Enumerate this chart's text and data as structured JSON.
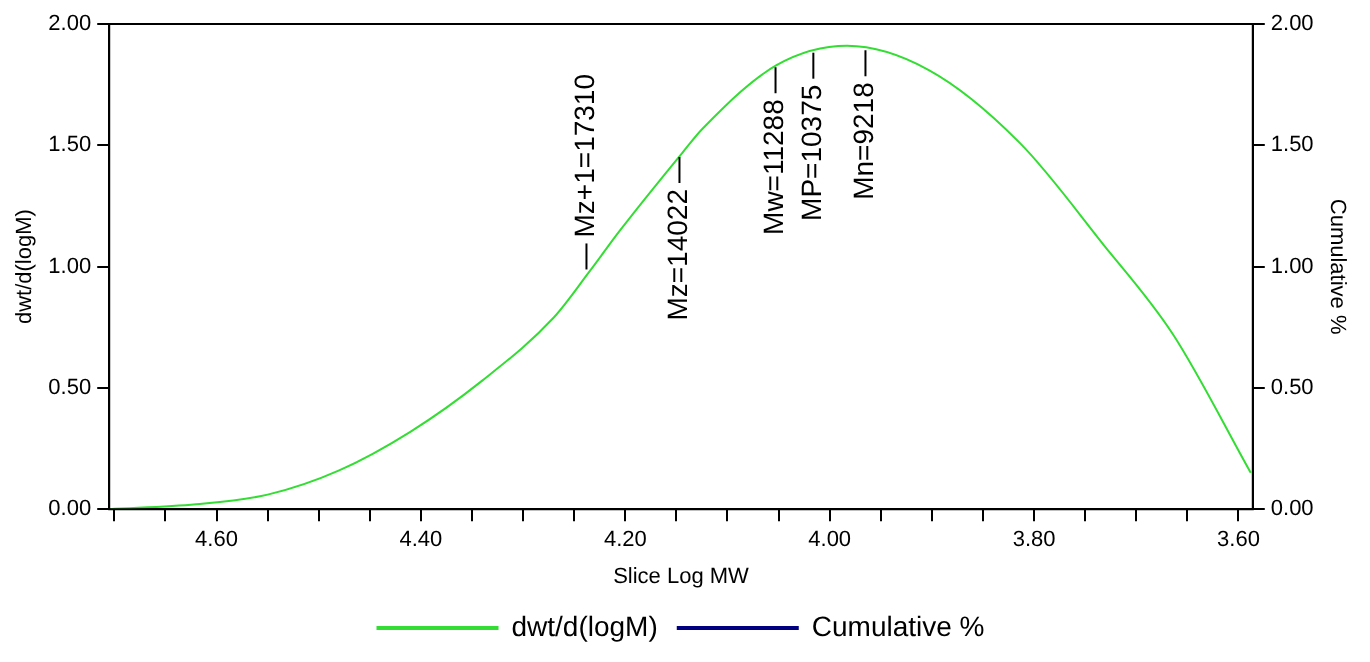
{
  "chart_data": {
    "type": "line",
    "xlabel": "Slice Log MW",
    "ylabel": "dwt/d(logM)",
    "y2label": "Cumulative %",
    "x": [
      4.705,
      4.62,
      4.55,
      4.48,
      4.41,
      4.34,
      4.27,
      4.235,
      4.205,
      4.144,
      4.124,
      4.052,
      3.983,
      3.903,
      3.814,
      3.732,
      3.664,
      3.588
    ],
    "series": [
      {
        "name": "dwt/d(logM)",
        "color": "#33dd33",
        "values": [
          0,
          0.02,
          0.06,
          0.16,
          0.32,
          0.53,
          0.79,
          0.98,
          1.15,
          1.47,
          1.57,
          1.83,
          1.91,
          1.81,
          1.51,
          1.09,
          0.72,
          0.15
        ]
      },
      {
        "name": "Cumulative %",
        "color": "#000080",
        "values": [
          null,
          null,
          null,
          null,
          null,
          null,
          null,
          null,
          null,
          null,
          null,
          null,
          null,
          null,
          null,
          null,
          null,
          null
        ]
      }
    ],
    "xlim": [
      4.705,
      3.586
    ],
    "xticks": [
      {
        "value": 4.7,
        "label": null
      },
      {
        "value": 4.65,
        "label": null
      },
      {
        "value": 4.6,
        "label": "4.60"
      },
      {
        "value": 4.55,
        "label": null
      },
      {
        "value": 4.5,
        "label": null
      },
      {
        "value": 4.45,
        "label": null
      },
      {
        "value": 4.4,
        "label": "4.40"
      },
      {
        "value": 4.35,
        "label": null
      },
      {
        "value": 4.3,
        "label": null
      },
      {
        "value": 4.25,
        "label": null
      },
      {
        "value": 4.2,
        "label": "4.20"
      },
      {
        "value": 4.15,
        "label": null
      },
      {
        "value": 4.1,
        "label": null
      },
      {
        "value": 4.05,
        "label": null
      },
      {
        "value": 4.0,
        "label": "4.00"
      },
      {
        "value": 3.95,
        "label": null
      },
      {
        "value": 3.9,
        "label": null
      },
      {
        "value": 3.85,
        "label": null
      },
      {
        "value": 3.8,
        "label": "3.80"
      },
      {
        "value": 3.75,
        "label": null
      },
      {
        "value": 3.7,
        "label": null
      },
      {
        "value": 3.65,
        "label": null
      },
      {
        "value": 3.6,
        "label": "3.60"
      }
    ],
    "ylim": [
      0,
      2
    ],
    "yticks": [
      {
        "value": 0,
        "label": "0.00"
      },
      {
        "value": 0.5,
        "label": "0.50"
      },
      {
        "value": 1,
        "label": "1.00"
      },
      {
        "value": 1.5,
        "label": "1.50"
      },
      {
        "value": 2,
        "label": "2.00"
      }
    ],
    "y2lim": [
      0,
      2
    ],
    "y2ticks": [
      {
        "value": 0,
        "label": "0.00"
      },
      {
        "value": 0.5,
        "label": "0.50"
      },
      {
        "value": 1,
        "label": "1.00"
      },
      {
        "value": 1.5,
        "label": "1.50"
      },
      {
        "value": 2,
        "label": "2.00"
      }
    ],
    "annotations": [
      {
        "text": "Mz+1=17310",
        "x": 4.238,
        "y": 0.98
      },
      {
        "text": "Mz=14022",
        "x": 4.147,
        "y": 1.46
      },
      {
        "text": "Mw=11288",
        "x": 4.053,
        "y": 1.83
      },
      {
        "text": "MP=10375",
        "x": 4.016,
        "y": 1.89
      },
      {
        "text": "Mn=9218",
        "x": 3.965,
        "y": 1.9
      }
    ],
    "grid": false,
    "legend": "bottom",
    "marker": "none",
    "line_style": "solid"
  }
}
